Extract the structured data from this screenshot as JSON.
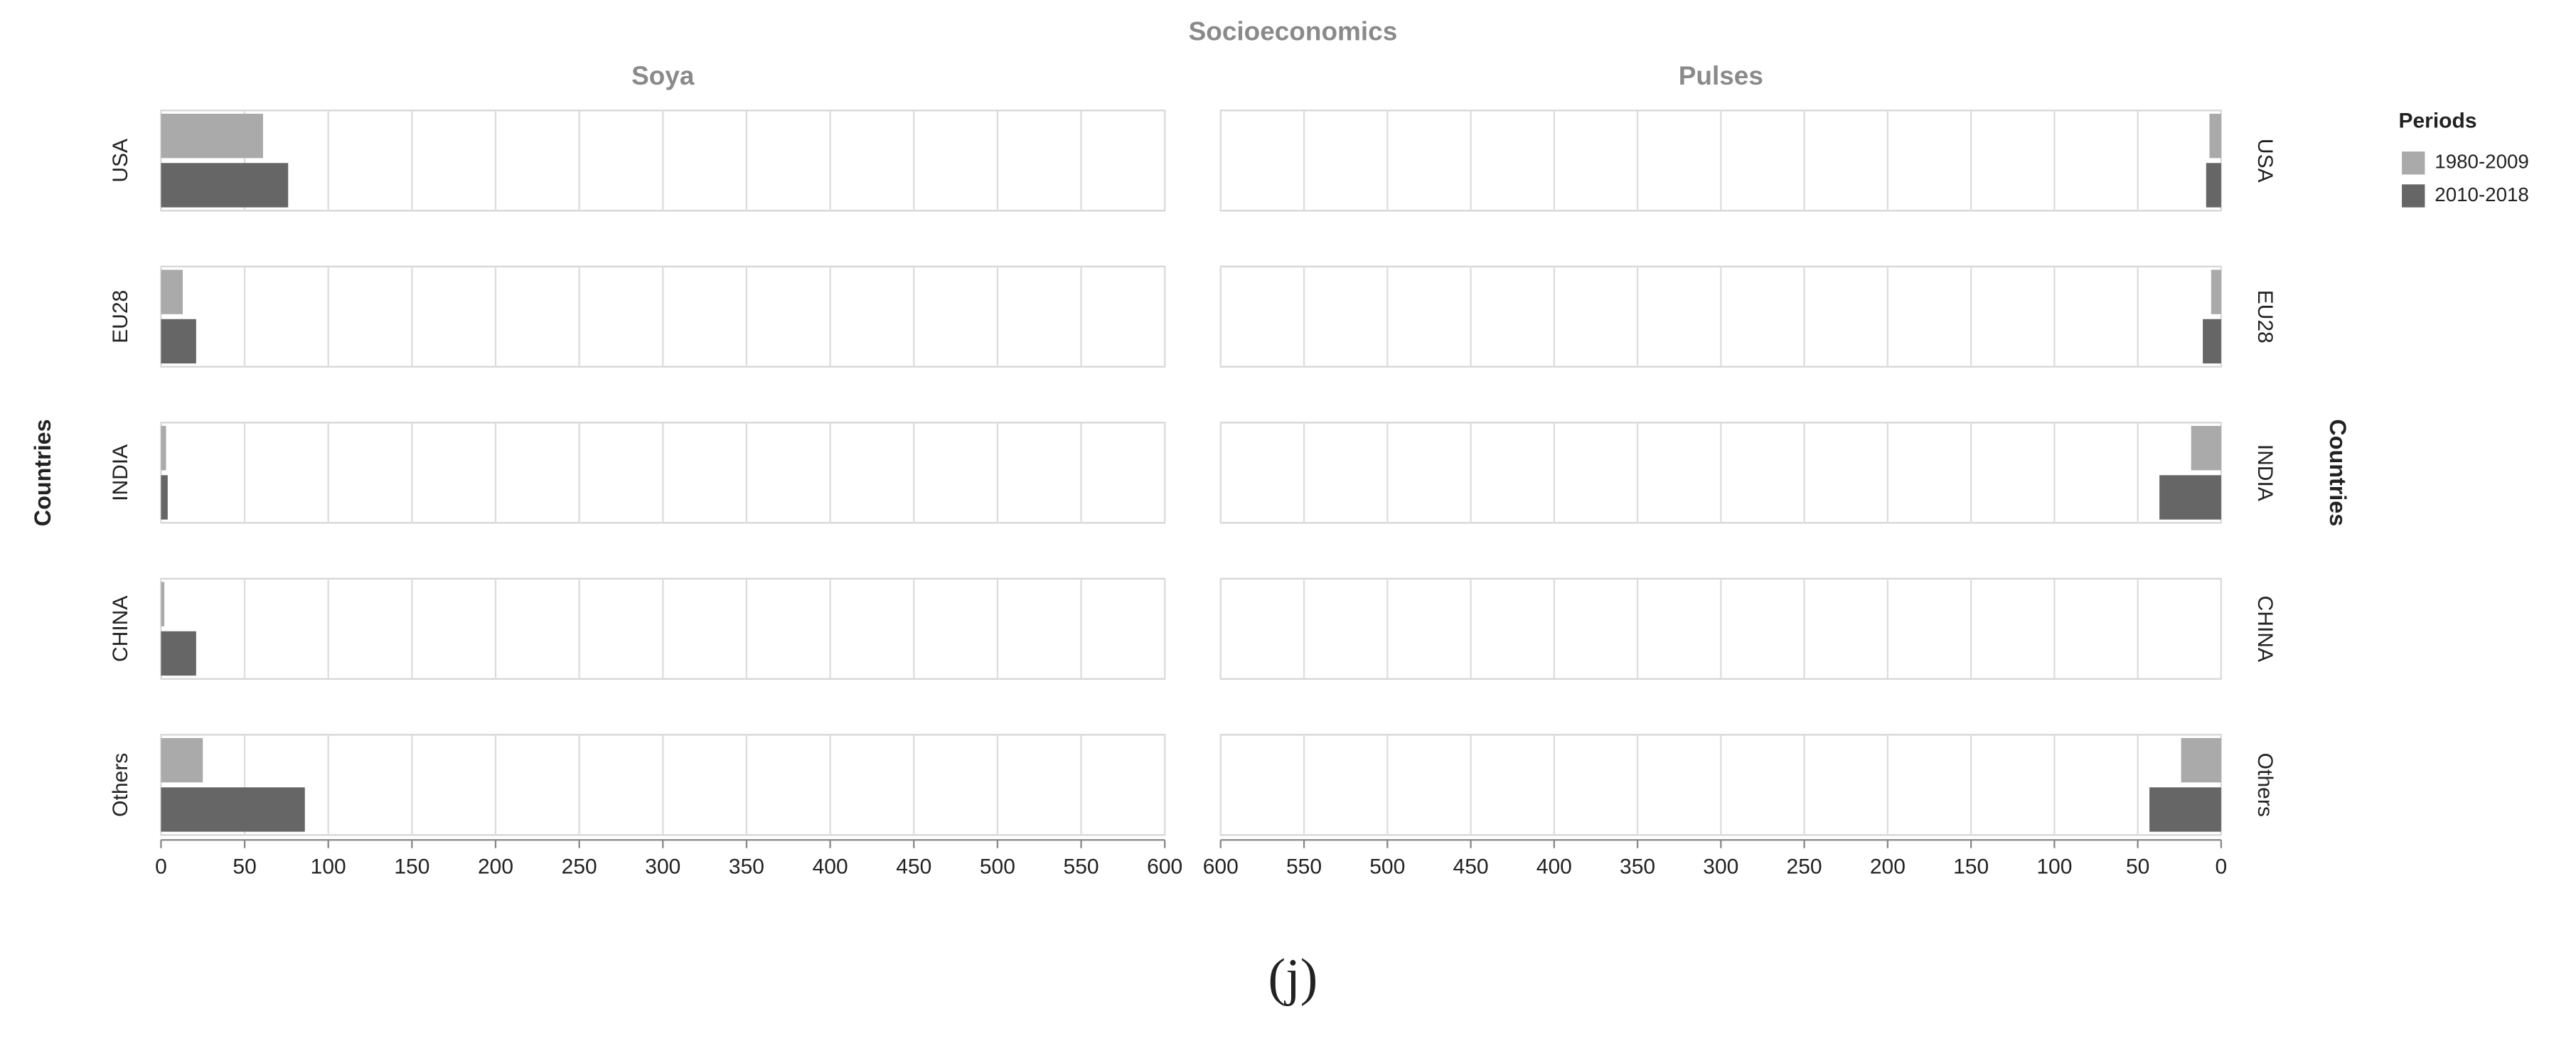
{
  "title": "Socioeconomics",
  "legend_title": "Periods",
  "caption": "(j)",
  "chart_data": [
    {
      "type": "bar",
      "orientation": "horizontal",
      "title": "Soya",
      "y_label": "Countries",
      "categories": [
        "USA",
        "EU28",
        "INDIA",
        "CHINA",
        "Others"
      ],
      "series": [
        {
          "name": "1980-2009",
          "color": "#aaaaaa",
          "values": [
            61,
            13,
            3,
            2,
            25
          ]
        },
        {
          "name": "2010-2018",
          "color": "#666666",
          "values": [
            76,
            21,
            4,
            21,
            86
          ]
        }
      ],
      "xlim": [
        0,
        600
      ],
      "xticks": [
        0,
        50,
        100,
        150,
        200,
        250,
        300,
        350,
        400,
        450,
        500,
        550,
        600
      ],
      "x_inverted": false,
      "category_axis_side": "left",
      "grid": true
    },
    {
      "type": "bar",
      "orientation": "horizontal",
      "title": "Pulses",
      "y_label": "Countries",
      "categories": [
        "USA",
        "EU28",
        "INDIA",
        "CHINA",
        "Others"
      ],
      "series": [
        {
          "name": "1980-2009",
          "color": "#aaaaaa",
          "values": [
            7,
            6,
            18,
            0,
            24
          ]
        },
        {
          "name": "2010-2018",
          "color": "#666666",
          "values": [
            9,
            11,
            37,
            0,
            43
          ]
        }
      ],
      "xlim": [
        0,
        600
      ],
      "xticks": [
        0,
        50,
        100,
        150,
        200,
        250,
        300,
        350,
        400,
        450,
        500,
        550,
        600
      ],
      "x_inverted": true,
      "category_axis_side": "right",
      "grid": true
    }
  ]
}
